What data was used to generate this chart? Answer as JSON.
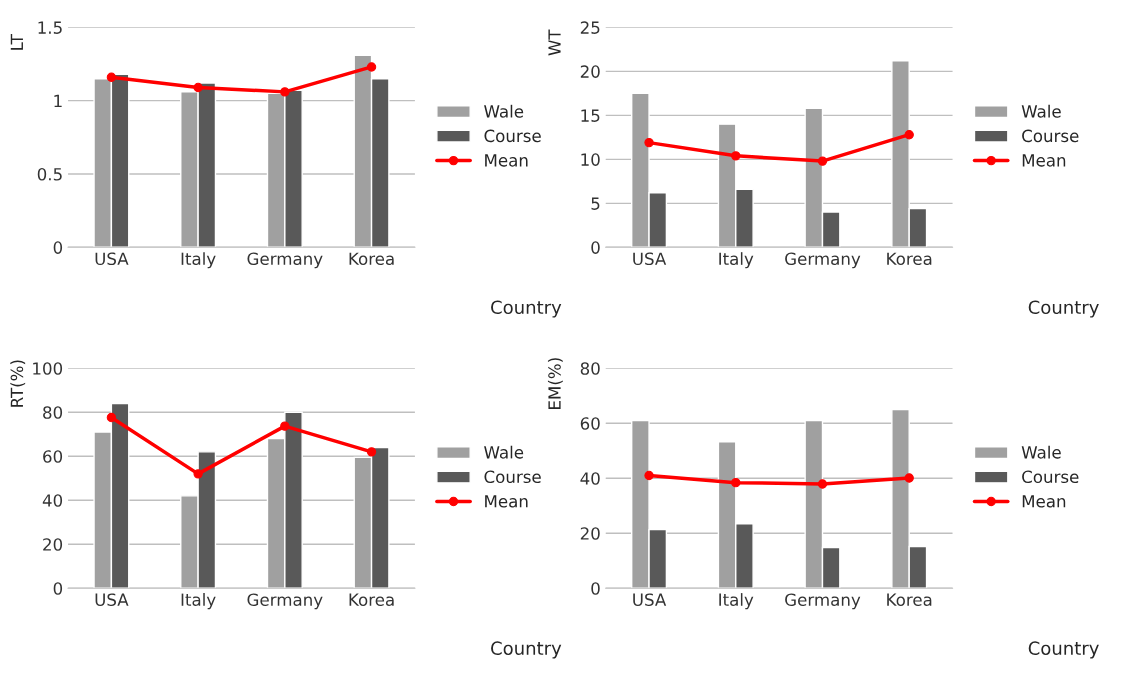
{
  "chart_data": [
    {
      "type": "bar",
      "ylabel": "LT",
      "xlabel": "Country",
      "categories": [
        "USA",
        "Italy",
        "Germany",
        "Korea"
      ],
      "ylim": [
        0,
        1.5
      ],
      "yticks": [
        0,
        0.5,
        1,
        1.5
      ],
      "grid": "y",
      "legend": "right",
      "series": [
        {
          "name": "Wale",
          "color": "#a0a0a0",
          "values": [
            1.15,
            1.06,
            1.05,
            1.31
          ]
        },
        {
          "name": "Course",
          "color": "#595959",
          "values": [
            1.18,
            1.12,
            1.07,
            1.15
          ]
        },
        {
          "name": "Mean",
          "type": "line",
          "color": "#ff0000",
          "marker": "circle",
          "values": [
            1.16,
            1.09,
            1.06,
            1.23
          ]
        }
      ]
    },
    {
      "type": "bar",
      "ylabel": "WT",
      "xlabel": "Country",
      "categories": [
        "USA",
        "Italy",
        "Germany",
        "Korea"
      ],
      "ylim": [
        0,
        25
      ],
      "yticks": [
        0,
        5,
        10,
        15,
        20,
        25
      ],
      "grid": "y",
      "legend": "right",
      "series": [
        {
          "name": "Wale",
          "color": "#a0a0a0",
          "values": [
            17.5,
            14.0,
            15.8,
            21.2
          ]
        },
        {
          "name": "Course",
          "color": "#595959",
          "values": [
            6.2,
            6.6,
            4.0,
            4.4
          ]
        },
        {
          "name": "Mean",
          "type": "line",
          "color": "#ff0000",
          "marker": "circle",
          "values": [
            11.9,
            10.4,
            9.8,
            12.8
          ]
        }
      ]
    },
    {
      "type": "bar",
      "ylabel": "RT(%)",
      "xlabel": "Country",
      "categories": [
        "USA",
        "Italy",
        "Germany",
        "Korea"
      ],
      "ylim": [
        0,
        100
      ],
      "yticks": [
        0,
        20,
        40,
        60,
        80,
        100
      ],
      "grid": "y",
      "legend": "right",
      "series": [
        {
          "name": "Wale",
          "color": "#a0a0a0",
          "values": [
            71,
            42,
            68,
            59.5
          ]
        },
        {
          "name": "Course",
          "color": "#595959",
          "values": [
            84,
            62,
            80,
            64
          ]
        },
        {
          "name": "Mean",
          "type": "line",
          "color": "#ff0000",
          "marker": "circle",
          "values": [
            77.6,
            52,
            73.7,
            62
          ]
        }
      ]
    },
    {
      "type": "bar",
      "ylabel": "EM(%)",
      "xlabel": "Country",
      "categories": [
        "USA",
        "Italy",
        "Germany",
        "Korea"
      ],
      "ylim": [
        0,
        80
      ],
      "yticks": [
        0,
        20,
        40,
        60,
        80
      ],
      "grid": "y",
      "legend": "right",
      "series": [
        {
          "name": "Wale",
          "color": "#a0a0a0",
          "values": [
            61,
            53.3,
            61,
            65
          ]
        },
        {
          "name": "Course",
          "color": "#595959",
          "values": [
            21.3,
            23.4,
            14.8,
            15.2
          ]
        },
        {
          "name": "Mean",
          "type": "line",
          "color": "#ff0000",
          "marker": "circle",
          "values": [
            41,
            38.4,
            37.9,
            40.1
          ]
        }
      ]
    }
  ]
}
